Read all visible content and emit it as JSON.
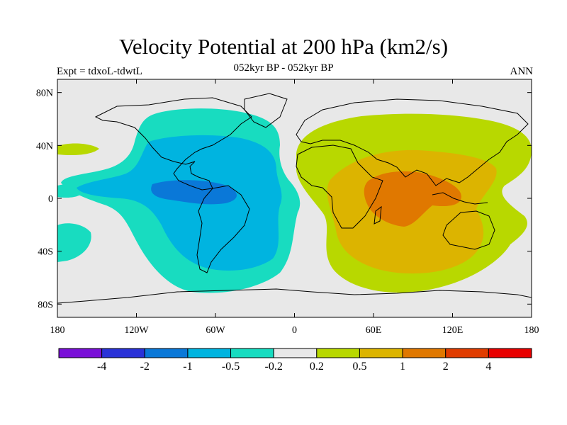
{
  "title": "Velocity Potential at 200 hPa (km2/s)",
  "left_label": "Expt = tdxoL-tdwtL",
  "center_label": "052kyr BP - 052kyr BP",
  "right_label": "ANN",
  "map": {
    "projection": "cylindrical equidistant",
    "lon_range": [
      -180,
      180
    ],
    "lat_range": [
      -90,
      90
    ],
    "lat_ticks": [
      {
        "value": 80,
        "label": "80N"
      },
      {
        "value": 40,
        "label": "40N"
      },
      {
        "value": 0,
        "label": "0"
      },
      {
        "value": -40,
        "label": "40S"
      },
      {
        "value": -80,
        "label": "80S"
      }
    ],
    "lon_ticks": [
      {
        "value": -180,
        "label": "180"
      },
      {
        "value": -120,
        "label": "120W"
      },
      {
        "value": -60,
        "label": "60W"
      },
      {
        "value": 0,
        "label": "0"
      },
      {
        "value": 60,
        "label": "60E"
      },
      {
        "value": 120,
        "label": "120E"
      },
      {
        "value": 180,
        "label": "180"
      }
    ]
  },
  "colorbar": {
    "colors": [
      "#7a10d8",
      "#2a32d8",
      "#0a78d8",
      "#00b4e0",
      "#18dcc0",
      "#e8e8e8",
      "#b8d800",
      "#dcb400",
      "#e07800",
      "#e03c00",
      "#e80000"
    ],
    "labels": [
      "-4",
      "-2",
      "-1",
      "-0.5",
      "-0.2",
      "0.2",
      "0.5",
      "1",
      "2",
      "4"
    ]
  },
  "legend_colors": {
    "background": "#e8e8e8",
    "neg_weak": "#18dcc0",
    "neg_mid": "#00b4e0",
    "neg_strong": "#0a78d8",
    "pos_weak": "#b8d800",
    "pos_mid": "#dcb400",
    "pos_strong": "#e07800"
  }
}
